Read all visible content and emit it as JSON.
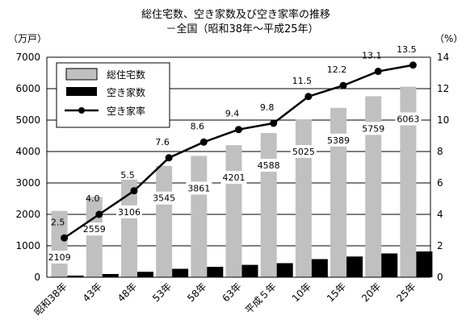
{
  "title": "総住宅数、空き家数及び空き家率の推移",
  "subtitle": "－全国（昭和38年～平成25年）",
  "chart_data": {
    "type": "bar",
    "categories": [
      "昭和38年",
      "43年",
      "48年",
      "53年",
      "58年",
      "63年",
      "平成５年",
      "10年",
      "15年",
      "20年",
      "25年"
    ],
    "left_axis_unit": "（万戸）",
    "right_axis_unit": "（%）",
    "left_ticks": [
      "0",
      "1000",
      "2000",
      "3000",
      "4000",
      "5000",
      "6000",
      "7000"
    ],
    "right_ticks": [
      "0",
      "2",
      "4",
      "6",
      "8",
      "10",
      "12",
      "14"
    ],
    "ylim": [
      0,
      7000
    ],
    "y2lim": [
      0,
      14
    ],
    "grid": true,
    "legend_position": "top-left",
    "series": [
      {
        "name": "総住宅数",
        "type": "bar",
        "axis": "left",
        "color": "#c0c0c0",
        "values": [
          2109,
          2559,
          3106,
          3545,
          3861,
          4201,
          4588,
          5025,
          5389,
          5759,
          6063
        ],
        "labels": [
          "2109",
          "2559",
          "3106",
          "3545",
          "3861",
          "4201",
          "4588",
          "5025",
          "5389",
          "5759",
          "6063"
        ]
      },
      {
        "name": "空き家数",
        "type": "bar",
        "axis": "left",
        "color": "#000000",
        "values": [
          52,
          103,
          172,
          268,
          330,
          394,
          448,
          576,
          659,
          757,
          820
        ]
      },
      {
        "name": "空き家率",
        "type": "line",
        "axis": "right",
        "color": "#000000",
        "values": [
          2.5,
          4.0,
          5.5,
          7.6,
          8.6,
          9.4,
          9.8,
          11.5,
          12.2,
          13.1,
          13.5
        ],
        "labels": [
          "2.5",
          "4.0",
          "5.5",
          "7.6",
          "8.6",
          "9.4",
          "9.8",
          "11.5",
          "12.2",
          "13.1",
          "13.5"
        ]
      }
    ]
  }
}
